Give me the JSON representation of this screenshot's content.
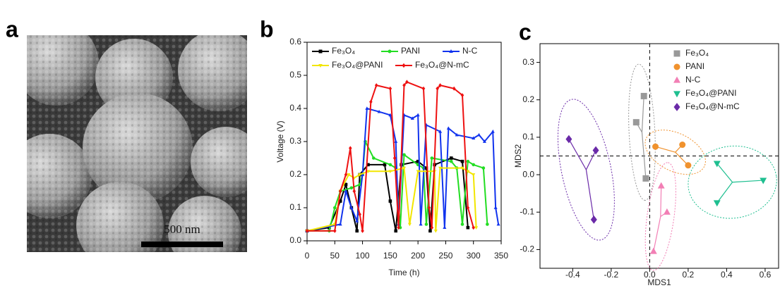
{
  "panel_labels": [
    "a",
    "b",
    "c"
  ],
  "scale_bar": "500 nm",
  "chart_data": [
    {
      "type": "line",
      "xlabel": "Time (h)",
      "ylabel": "Voltage (V)",
      "xlim": [
        0,
        350
      ],
      "xticks": [
        0,
        50,
        100,
        150,
        200,
        250,
        300,
        350
      ],
      "ylim": [
        0,
        0.6
      ],
      "yticks": [
        {
          "value": 0,
          "label": "0.0"
        },
        0.1,
        0.2,
        0.3,
        0.4,
        0.5,
        0.6
      ],
      "legend": "top",
      "series": [
        {
          "name": "Fe₃O₄",
          "color": "#000000",
          "marker": "square",
          "x": [
            0,
            40,
            60,
            70,
            80,
            90,
            95,
            110,
            140,
            150,
            160,
            170,
            200,
            215,
            222,
            230,
            260,
            280,
            290
          ],
          "values": [
            0.03,
            0.04,
            0.12,
            0.17,
            0.1,
            0.03,
            0.2,
            0.23,
            0.23,
            0.12,
            0.03,
            0.23,
            0.24,
            0.22,
            0.03,
            0.23,
            0.25,
            0.24,
            0.04
          ]
        },
        {
          "name": "PANI",
          "color": "#22dd22",
          "marker": "circle",
          "x": [
            0,
            40,
            50,
            60,
            80,
            95,
            100,
            105,
            120,
            150,
            160,
            168,
            175,
            200,
            210,
            215,
            225,
            260,
            270,
            280,
            290,
            300,
            318,
            325
          ],
          "values": [
            0.03,
            0.03,
            0.1,
            0.15,
            0.16,
            0.17,
            0.2,
            0.3,
            0.25,
            0.23,
            0.22,
            0.04,
            0.26,
            0.23,
            0.22,
            0.05,
            0.25,
            0.24,
            0.22,
            0.05,
            0.24,
            0.23,
            0.22,
            0.05
          ]
        },
        {
          "name": "N-C",
          "color": "#1133ee",
          "marker": "triangle",
          "x": [
            0,
            60,
            70,
            80,
            90,
            100,
            108,
            130,
            150,
            160,
            165,
            175,
            190,
            200,
            205,
            215,
            240,
            248,
            255,
            270,
            300,
            310,
            320,
            335,
            340,
            345
          ],
          "values": [
            0.03,
            0.05,
            0.15,
            0.1,
            0.06,
            0.2,
            0.4,
            0.39,
            0.38,
            0.3,
            0.05,
            0.38,
            0.37,
            0.38,
            0.05,
            0.35,
            0.33,
            0.04,
            0.34,
            0.32,
            0.31,
            0.32,
            0.3,
            0.33,
            0.1,
            0.05
          ]
        },
        {
          "name": "Fe₃O₄@PANI",
          "color": "#f2e600",
          "marker": "triangle-down",
          "x": [
            0,
            50,
            60,
            75,
            85,
            95,
            110,
            150,
            175,
            185,
            200,
            230,
            232,
            240,
            280,
            290,
            300,
            305
          ],
          "values": [
            0.03,
            0.05,
            0.15,
            0.2,
            0.19,
            0.2,
            0.21,
            0.21,
            0.22,
            0.05,
            0.21,
            0.21,
            0.03,
            0.22,
            0.22,
            0.21,
            0.2,
            0.04
          ]
        },
        {
          "name": "Fe₃O₄@N-mC",
          "color": "#ee1111",
          "marker": "diamond",
          "x": [
            0,
            50,
            60,
            70,
            78,
            85,
            95,
            100,
            115,
            125,
            150,
            158,
            165,
            175,
            180,
            210,
            220,
            225,
            235,
            240,
            265,
            280,
            290,
            300
          ],
          "values": [
            0.03,
            0.03,
            0.15,
            0.2,
            0.28,
            0.15,
            0.08,
            0.03,
            0.42,
            0.47,
            0.46,
            0.25,
            0.04,
            0.47,
            0.48,
            0.46,
            0.1,
            0.04,
            0.46,
            0.47,
            0.46,
            0.44,
            0.1,
            0.04
          ]
        }
      ]
    },
    {
      "type": "scatter",
      "xlabel": "MDS1",
      "ylabel": "MDS2",
      "xlim": [
        -0.57,
        0.67
      ],
      "xticks": [
        -0.4,
        -0.2,
        {
          "value": 0,
          "label": "0.0"
        },
        0.2,
        0.4,
        0.6
      ],
      "ylim": [
        -0.25,
        0.35
      ],
      "yticks": [
        -0.2,
        -0.1,
        {
          "value": 0,
          "label": "0.0"
        },
        0.1,
        0.2,
        0.3
      ],
      "reference_lines": {
        "x": 0,
        "y": 0.05
      },
      "legend": "top-right",
      "series": [
        {
          "name": "Fe₃O₄",
          "color": "#999999",
          "marker": "square",
          "x": [
            -0.03,
            -0.07,
            -0.02
          ],
          "values": [
            0.21,
            0.14,
            -0.01
          ]
        },
        {
          "name": "PANI",
          "color": "#f0922e",
          "marker": "circle",
          "x": [
            0.03,
            0.17,
            0.2
          ],
          "values": [
            0.075,
            0.08,
            0.025
          ]
        },
        {
          "name": "N-C",
          "color": "#f27fb5",
          "marker": "triangle",
          "x": [
            0.06,
            0.09,
            0.02
          ],
          "values": [
            -0.03,
            -0.1,
            -0.205
          ]
        },
        {
          "name": "Fe₃O₄@PANI",
          "color": "#1fbf90",
          "marker": "triangle-down",
          "x": [
            0.35,
            0.59,
            0.35
          ],
          "values": [
            0.03,
            -0.015,
            -0.075
          ]
        },
        {
          "name": "Fe₃O₄@N-mC",
          "color": "#6a2aa8",
          "marker": "diamond",
          "x": [
            -0.42,
            -0.28,
            -0.29
          ],
          "values": [
            0.095,
            0.065,
            -0.12
          ]
        }
      ]
    }
  ]
}
